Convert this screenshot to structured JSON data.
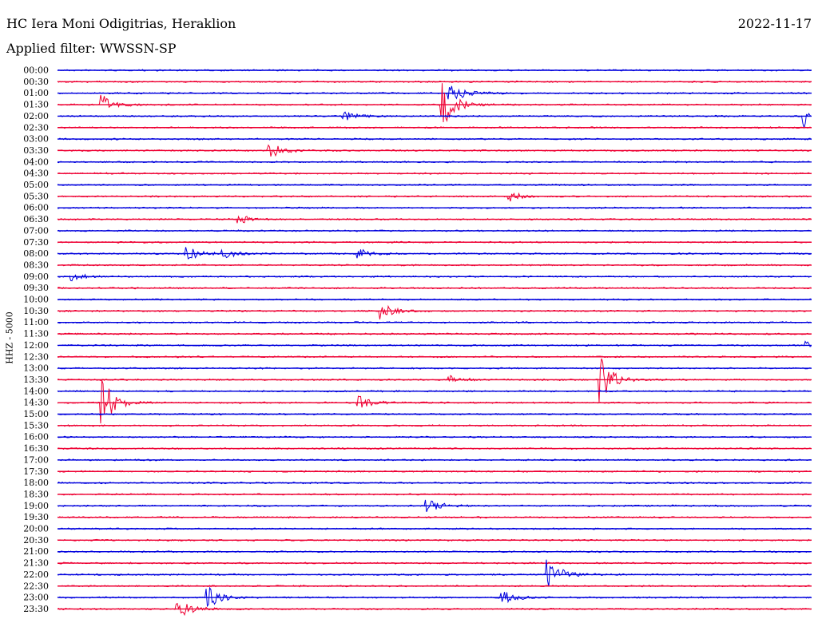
{
  "header": {
    "station": "HC Iera Moni Odigitrias, Heraklion",
    "date": "2022-11-17",
    "filter": "Applied filter: WWSSN-SP",
    "channel": "HHZ - 5000"
  },
  "colors": {
    "blue": "#0000dd",
    "red": "#ee0033"
  },
  "chart_data": {
    "type": "line",
    "title": "HC Iera Moni Odigitrias, Heraklion",
    "ylabel": "HHZ - 5000",
    "grid": false,
    "y_ticks": [
      "00:00",
      "00:30",
      "01:00",
      "01:30",
      "02:00",
      "02:30",
      "03:00",
      "03:30",
      "04:00",
      "04:30",
      "05:00",
      "05:30",
      "06:00",
      "06:30",
      "07:00",
      "07:30",
      "08:00",
      "08:30",
      "09:00",
      "09:30",
      "10:00",
      "10:30",
      "11:00",
      "11:30",
      "12:00",
      "12:30",
      "13:00",
      "13:30",
      "14:00",
      "14:30",
      "15:00",
      "15:30",
      "16:00",
      "16:30",
      "17:00",
      "17:30",
      "18:00",
      "18:30",
      "19:00",
      "19:30",
      "20:00",
      "20:30",
      "21:00",
      "21:30",
      "22:00",
      "22:30",
      "23:00",
      "23:30"
    ],
    "series_colors": [
      "blue",
      "red"
    ],
    "events": [
      {
        "row": 3,
        "x": 0.06,
        "amp": 12
      },
      {
        "row": 3,
        "x": 0.51,
        "amp": 30
      },
      {
        "row": 2,
        "x": 0.52,
        "amp": 16
      },
      {
        "row": 4,
        "x": 0.38,
        "amp": 6
      },
      {
        "row": 4,
        "x": 0.99,
        "amp": 14
      },
      {
        "row": 7,
        "x": 0.28,
        "amp": 12
      },
      {
        "row": 11,
        "x": 0.6,
        "amp": 6
      },
      {
        "row": 13,
        "x": 0.24,
        "amp": 6
      },
      {
        "row": 16,
        "x": 0.17,
        "amp": 10
      },
      {
        "row": 16,
        "x": 0.22,
        "amp": 7
      },
      {
        "row": 16,
        "x": 0.4,
        "amp": 6
      },
      {
        "row": 18,
        "x": 0.02,
        "amp": 5
      },
      {
        "row": 21,
        "x": 0.43,
        "amp": 10
      },
      {
        "row": 24,
        "x": 0.99,
        "amp": 5
      },
      {
        "row": 27,
        "x": 0.72,
        "amp": 30
      },
      {
        "row": 27,
        "x": 0.52,
        "amp": 6
      },
      {
        "row": 29,
        "x": 0.06,
        "amp": 30
      },
      {
        "row": 29,
        "x": 0.4,
        "amp": 8
      },
      {
        "row": 38,
        "x": 0.49,
        "amp": 11
      },
      {
        "row": 44,
        "x": 0.65,
        "amp": 22
      },
      {
        "row": 46,
        "x": 0.2,
        "amp": 14
      },
      {
        "row": 46,
        "x": 0.59,
        "amp": 9
      },
      {
        "row": 47,
        "x": 0.16,
        "amp": 14
      }
    ]
  }
}
